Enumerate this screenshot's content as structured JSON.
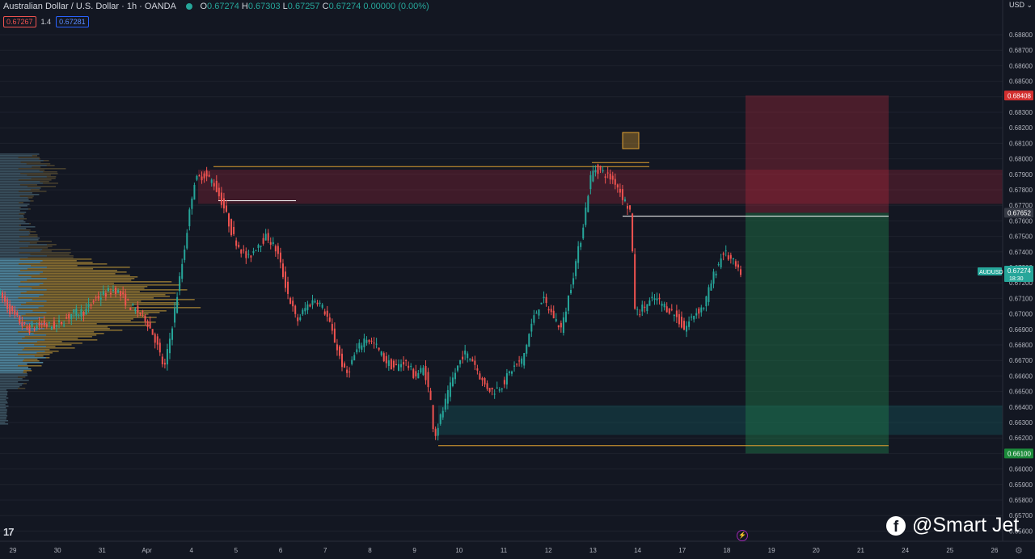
{
  "header": {
    "symbol": "Australian Dollar / U.S. Dollar · 1h · OANDA",
    "o_label": "O",
    "o_value": "0.67274",
    "h_label": "H",
    "h_value": "0.67303",
    "l_label": "L",
    "l_value": "0.67257",
    "c_label": "C",
    "c_value": "0.67274",
    "change": "0.00000 (0.00%)"
  },
  "trade_panel": {
    "sell_price": "0.67267",
    "spread": "1.4",
    "buy_price": "0.67281"
  },
  "currency_label": "USD",
  "watermark": {
    "icon": "facebook-icon",
    "text": "@Smart Jet"
  },
  "colors": {
    "bg": "#131722",
    "up": "#26a69a",
    "down": "#ef5350",
    "stop_zone": "#b2283c",
    "target_zone": "#1f7a4a",
    "demand_zone": "#135f64",
    "yellow_line": "#e0a030"
  },
  "chart_data": {
    "type": "candlestick",
    "title": "Australian Dollar / U.S. Dollar · 1h · OANDA",
    "y_range": [
      0.6555,
      0.689
    ],
    "y_ticks": [
      "0.68800",
      "0.68700",
      "0.68600",
      "0.68500",
      "0.68400",
      "0.68300",
      "0.68200",
      "0.68100",
      "0.68000",
      "0.67900",
      "0.67800",
      "0.67700",
      "0.67600",
      "0.67500",
      "0.67400",
      "0.67300",
      "0.67200",
      "0.67100",
      "0.67000",
      "0.66900",
      "0.66800",
      "0.66700",
      "0.66600",
      "0.66500",
      "0.66400",
      "0.66300",
      "0.66200",
      "0.66100",
      "0.66000",
      "0.65900",
      "0.65800",
      "0.65700",
      "0.65600"
    ],
    "x_ticks": [
      "29",
      "30",
      "31",
      "Apr",
      "4",
      "5",
      "6",
      "7",
      "8",
      "9",
      "10",
      "11",
      "12",
      "13",
      "14",
      "17",
      "18",
      "19",
      "20",
      "21",
      "24",
      "25",
      "26"
    ],
    "price_path": [
      [
        0,
        0.6715
      ],
      [
        3,
        0.67
      ],
      [
        6,
        0.669
      ],
      [
        9,
        0.6693
      ],
      [
        12,
        0.6692
      ],
      [
        15,
        0.67
      ],
      [
        18,
        0.6702
      ],
      [
        20,
        0.671
      ],
      [
        24,
        0.6716
      ],
      [
        27,
        0.6705
      ],
      [
        30,
        0.6698
      ],
      [
        32,
        0.6685
      ],
      [
        34,
        0.6664
      ],
      [
        36,
        0.67
      ],
      [
        38,
        0.674
      ],
      [
        40,
        0.6785
      ],
      [
        42,
        0.679
      ],
      [
        44,
        0.6785
      ],
      [
        46,
        0.677
      ],
      [
        48,
        0.675
      ],
      [
        51,
        0.6735
      ],
      [
        53,
        0.6745
      ],
      [
        55,
        0.675
      ],
      [
        57,
        0.674
      ],
      [
        59,
        0.6715
      ],
      [
        61,
        0.6695
      ],
      [
        63,
        0.6705
      ],
      [
        65,
        0.671
      ],
      [
        67,
        0.67
      ],
      [
        69,
        0.668
      ],
      [
        71,
        0.666
      ],
      [
        73,
        0.6675
      ],
      [
        75,
        0.6685
      ],
      [
        77,
        0.668
      ],
      [
        79,
        0.667
      ],
      [
        81,
        0.6665
      ],
      [
        83,
        0.667
      ],
      [
        85,
        0.666
      ],
      [
        87,
        0.6665
      ],
      [
        88.5,
        0.664
      ],
      [
        89,
        0.662
      ],
      [
        91,
        0.664
      ],
      [
        93,
        0.666
      ],
      [
        95,
        0.6675
      ],
      [
        97,
        0.667
      ],
      [
        99,
        0.6655
      ],
      [
        101,
        0.665
      ],
      [
        103,
        0.6655
      ],
      [
        105,
        0.6665
      ],
      [
        107,
        0.667
      ],
      [
        109,
        0.6695
      ],
      [
        111,
        0.671
      ],
      [
        113,
        0.67
      ],
      [
        115,
        0.669
      ],
      [
        117,
        0.672
      ],
      [
        119,
        0.675
      ],
      [
        121,
        0.679
      ],
      [
        122,
        0.6794
      ],
      [
        124,
        0.679
      ],
      [
        126,
        0.6785
      ],
      [
        128,
        0.6772
      ],
      [
        129,
        0.6766
      ],
      [
        130,
        0.67
      ],
      [
        132,
        0.6705
      ],
      [
        134,
        0.671
      ],
      [
        136,
        0.6705
      ],
      [
        138,
        0.67
      ],
      [
        140,
        0.669
      ],
      [
        142,
        0.67
      ],
      [
        144,
        0.6705
      ],
      [
        146,
        0.6725
      ],
      [
        148,
        0.674
      ],
      [
        150,
        0.6733
      ],
      [
        151,
        0.6727
      ]
    ],
    "markers": {
      "resistance_line": 0.6795,
      "swing_high_line": 0.6773,
      "support_line": 0.6615,
      "short_entry": 0.6763,
      "upper_supply_zone": [
        0.6771,
        0.6793
      ],
      "lower_demand_zone": [
        0.6622,
        0.6641
      ]
    },
    "position_tool": {
      "type": "short",
      "stop_loss": "0.68408",
      "entry": "0.67652",
      "target": "0.66100"
    },
    "last_price": {
      "symbol": "AUDUSD",
      "value": "0.67274",
      "countdown": "18:30"
    }
  }
}
